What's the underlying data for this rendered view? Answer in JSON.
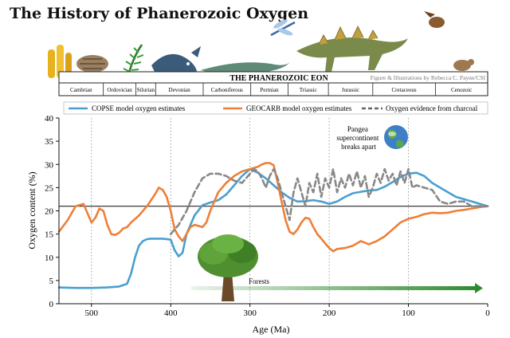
{
  "title": "The History of Phanerozoic Oxygen",
  "banner": {
    "eon": "THE PHANEROZOIC EON",
    "credit": "Figure & Illustrations by Rebecca C. Payne/CSI"
  },
  "periods": [
    {
      "name": "Cambrian",
      "start": 541,
      "end": 485
    },
    {
      "name": "Ordovician",
      "start": 485,
      "end": 444
    },
    {
      "name": "Silurian",
      "start": 444,
      "end": 419
    },
    {
      "name": "Devonian",
      "start": 419,
      "end": 359
    },
    {
      "name": "Carboniferous",
      "start": 359,
      "end": 299
    },
    {
      "name": "Permian",
      "start": 299,
      "end": 252
    },
    {
      "name": "Triassic",
      "start": 252,
      "end": 201
    },
    {
      "name": "Jurassic",
      "start": 201,
      "end": 145
    },
    {
      "name": "Cretaceous",
      "start": 145,
      "end": 66
    },
    {
      "name": "Cenozoic",
      "start": 66,
      "end": 0
    }
  ],
  "annotations": {
    "pangea": "Pangea\nsupercontinent\nbreaks apart",
    "forests": "Forests"
  },
  "colors": {
    "copse": "#4a9fd0",
    "geocarb": "#ef7f37",
    "charcoal": "#888888",
    "forest_arrow": "#2e8b2e"
  },
  "chart_data": {
    "type": "line",
    "xlabel": "Age (Ma)",
    "ylabel": "Oxygen content (%)",
    "xlim": [
      541,
      0
    ],
    "ylim": [
      0,
      40
    ],
    "xticks": [
      500,
      400,
      300,
      200,
      100,
      0
    ],
    "yticks": [
      0,
      5,
      10,
      15,
      20,
      25,
      30,
      35,
      40
    ],
    "reference_line": 21,
    "legend_position": "top",
    "series": [
      {
        "name": "COPSE model oxygen estimates",
        "style": "solid",
        "x": [
          541,
          520,
          500,
          480,
          465,
          455,
          450,
          445,
          440,
          435,
          430,
          425,
          420,
          410,
          400,
          395,
          390,
          385,
          380,
          370,
          360,
          350,
          340,
          330,
          320,
          310,
          300,
          290,
          280,
          270,
          260,
          250,
          240,
          230,
          220,
          210,
          200,
          190,
          180,
          170,
          160,
          150,
          140,
          130,
          120,
          110,
          100,
          90,
          80,
          70,
          60,
          50,
          40,
          30,
          20,
          10,
          0
        ],
        "y": [
          3.5,
          3.4,
          3.4,
          3.5,
          3.7,
          4.3,
          6.5,
          10,
          12.5,
          13.5,
          13.9,
          14,
          14,
          14,
          13.8,
          11.5,
          10.2,
          11,
          15,
          19,
          21.2,
          21.8,
          22.3,
          23.5,
          25.5,
          27.5,
          29,
          28.2,
          27,
          25.5,
          24,
          22.8,
          22,
          22.1,
          22.3,
          22,
          21.5,
          22,
          23,
          23.8,
          24.1,
          24.4,
          24.5,
          25.2,
          26.2,
          27.3,
          28,
          28.2,
          27.5,
          26,
          25,
          24,
          23,
          22.5,
          22,
          21.5,
          21
        ]
      },
      {
        "name": "GEOCARB model oxygen estimates",
        "style": "solid",
        "x": [
          541,
          530,
          520,
          510,
          500,
          495,
          490,
          485,
          480,
          475,
          470,
          465,
          460,
          455,
          450,
          440,
          430,
          420,
          415,
          410,
          405,
          400,
          395,
          390,
          385,
          380,
          375,
          370,
          360,
          355,
          350,
          340,
          330,
          320,
          310,
          300,
          290,
          285,
          280,
          275,
          270,
          265,
          260,
          255,
          250,
          245,
          240,
          235,
          230,
          225,
          220,
          215,
          210,
          205,
          200,
          195,
          190,
          180,
          170,
          160,
          150,
          140,
          130,
          120,
          110,
          100,
          90,
          80,
          70,
          60,
          50,
          40,
          30,
          20,
          10,
          0
        ],
        "y": [
          15.5,
          18,
          21,
          21.5,
          17.5,
          18.5,
          20.5,
          20,
          17,
          15,
          14.8,
          15.3,
          16.2,
          16.5,
          17.5,
          19,
          21,
          23.5,
          25,
          24.5,
          23,
          20,
          16,
          14.5,
          13.5,
          15,
          16.5,
          17,
          16.5,
          17.5,
          20,
          24,
          26,
          27.5,
          28.5,
          29,
          29.5,
          30,
          30.3,
          30.3,
          29.8,
          26,
          22,
          18,
          15.5,
          15,
          16,
          17.5,
          18.5,
          18.3,
          16.5,
          15,
          14,
          13,
          12,
          11.3,
          11.8,
          12,
          12.5,
          13.5,
          12.8,
          13.5,
          14.5,
          16,
          17.5,
          18.3,
          18.7,
          19.3,
          19.6,
          19.5,
          19.6,
          20,
          20.2,
          20.5,
          20.8,
          21
        ]
      },
      {
        "name": "Oxygen evidence from charcoal",
        "style": "dashed",
        "x": [
          400,
          390,
          380,
          370,
          360,
          350,
          340,
          330,
          320,
          310,
          300,
          295,
          290,
          285,
          280,
          275,
          270,
          265,
          260,
          255,
          250,
          245,
          240,
          235,
          230,
          225,
          220,
          215,
          210,
          205,
          200,
          195,
          190,
          185,
          180,
          175,
          170,
          165,
          160,
          155,
          150,
          145,
          140,
          135,
          130,
          125,
          120,
          115,
          110,
          105,
          100,
          95,
          90,
          80,
          70,
          60,
          50,
          40,
          30,
          20,
          10,
          0
        ],
        "y": [
          15,
          17,
          20,
          24,
          27,
          28,
          28,
          27.5,
          26.5,
          26,
          28,
          29,
          28.5,
          27,
          25,
          27.5,
          29,
          27,
          24,
          21,
          18,
          24,
          27,
          24,
          21,
          26,
          24,
          28,
          23,
          27,
          25,
          29,
          24,
          27,
          25,
          28,
          25.5,
          28.5,
          25,
          27.5,
          23,
          25,
          28,
          26,
          29,
          26.5,
          28,
          25.5,
          28.5,
          26,
          29,
          25,
          25.5,
          25,
          24.5,
          22,
          21.5,
          22,
          22,
          21,
          21,
          21
        ]
      }
    ]
  }
}
